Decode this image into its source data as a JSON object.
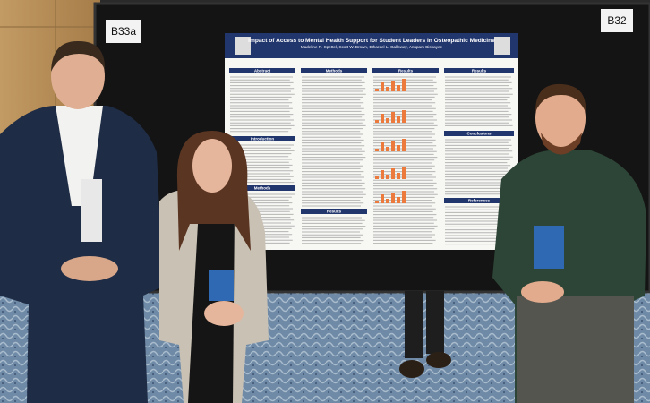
{
  "signs": {
    "left": "B33a",
    "right": "B32"
  },
  "poster": {
    "title": "Impact of Access to Mental Health Support for Student Leaders in Osteopathic Medicine",
    "authors": "Madeline R. Spettel, Scott W. Brown, Ethardel L. Galloway, Anupam Bishayee",
    "sections": [
      "Abstract",
      "Methods",
      "Results",
      "Results",
      "Introduction",
      "Conclusions",
      "Methods",
      "Results",
      "References"
    ]
  }
}
